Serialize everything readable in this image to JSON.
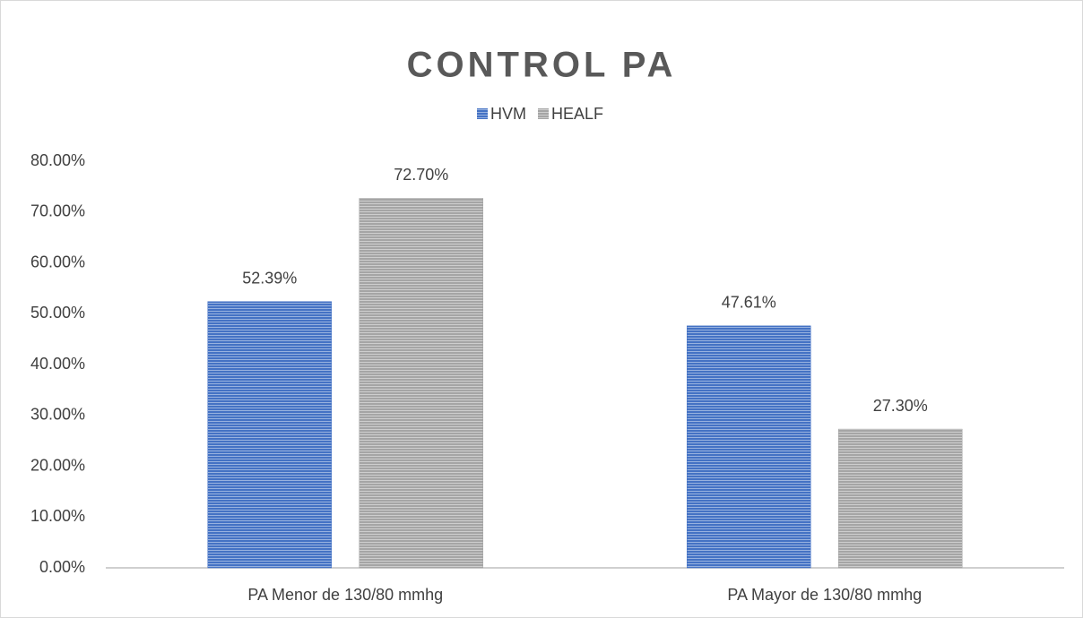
{
  "chart_data": {
    "type": "bar",
    "title": "CONTROL PA",
    "categories": [
      "PA Menor de 130/80 mmhg",
      "PA Mayor de 130/80 mmhg"
    ],
    "series": [
      {
        "name": "HVM",
        "color": "#4472c4",
        "values": [
          52.39,
          47.61
        ],
        "value_labels": [
          "52.39%",
          "47.61%"
        ]
      },
      {
        "name": "HEALF",
        "color": "#a5a5a5",
        "values": [
          72.7,
          27.3
        ],
        "value_labels": [
          "72.70%",
          "27.30%"
        ]
      }
    ],
    "ylim": [
      0,
      80
    ],
    "yticks": [
      {
        "value": 0,
        "label": "0.00%"
      },
      {
        "value": 10,
        "label": "10.00%"
      },
      {
        "value": 20,
        "label": "20.00%"
      },
      {
        "value": 30,
        "label": "30.00%"
      },
      {
        "value": 40,
        "label": "40.00%"
      },
      {
        "value": 50,
        "label": "50.00%"
      },
      {
        "value": 60,
        "label": "60.00%"
      },
      {
        "value": 70,
        "label": "70.00%"
      },
      {
        "value": 80,
        "label": "80.00%"
      }
    ],
    "grid": false,
    "legend": "top"
  }
}
